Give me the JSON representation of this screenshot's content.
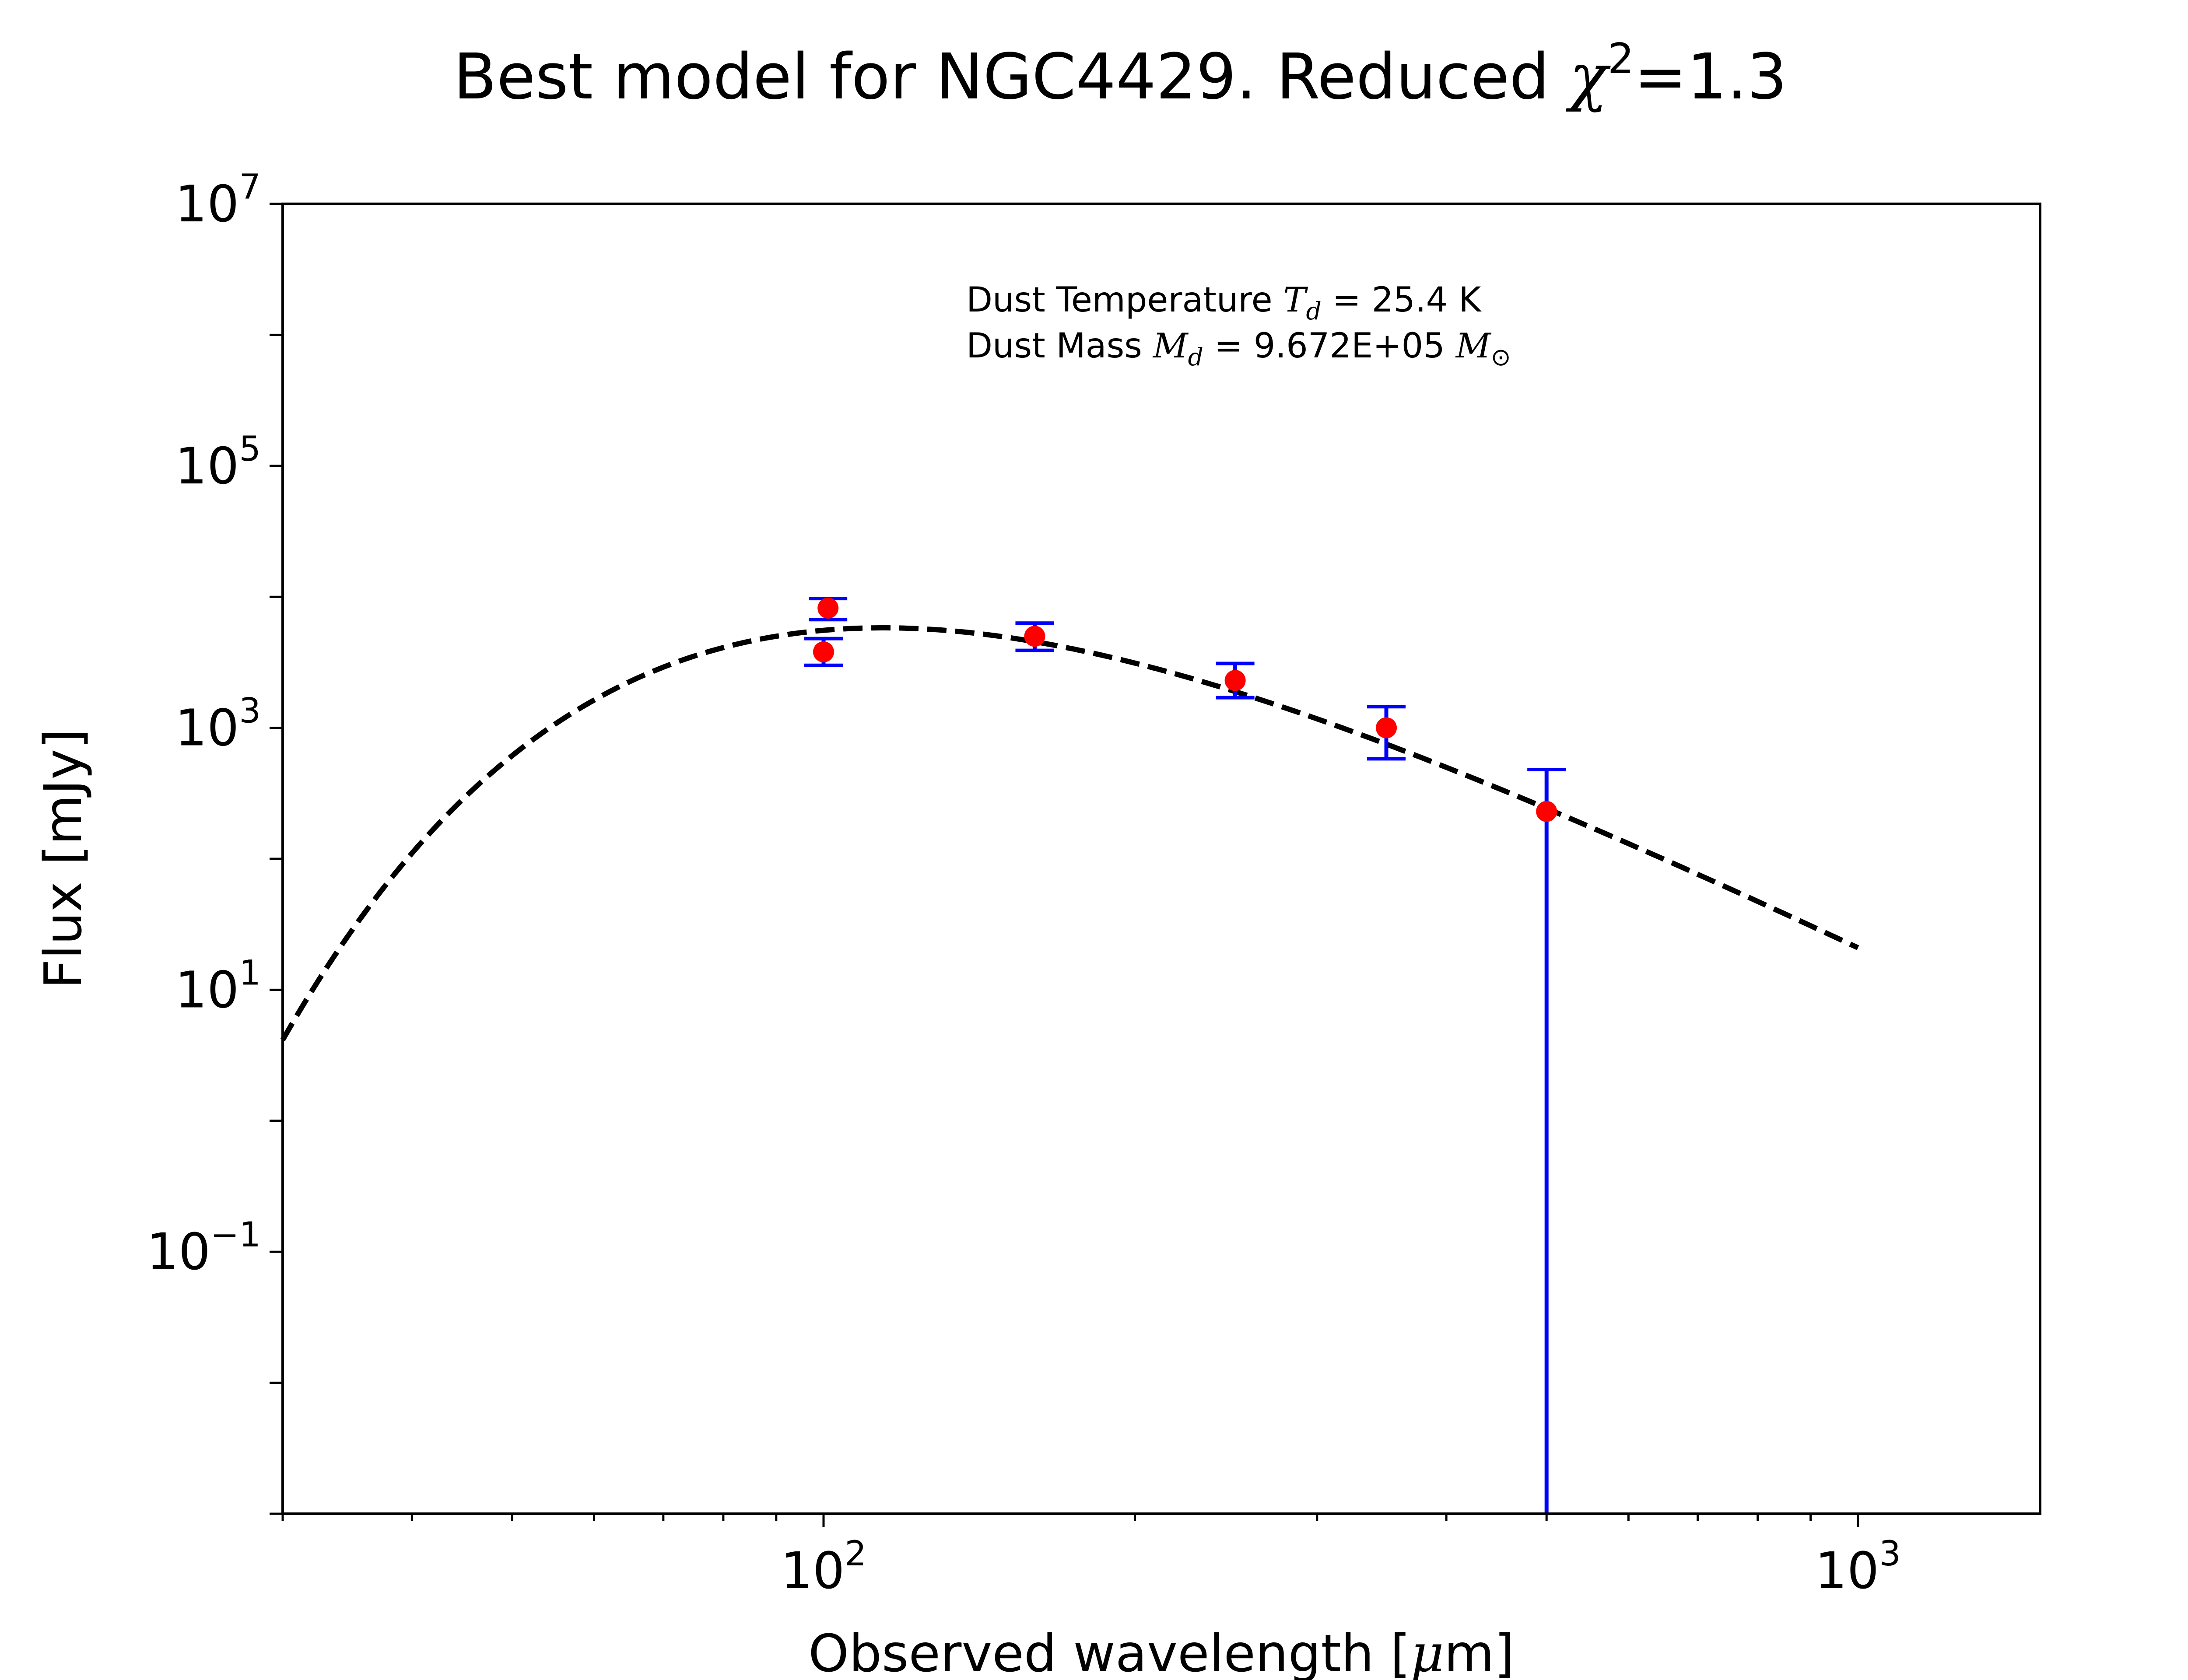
{
  "chart_data": {
    "type": "scatter",
    "title": {
      "prefix": "Best model for NGC4429. Reduced ",
      "chi": "χ",
      "exponent": "2",
      "suffix": "=1.3"
    },
    "xlabel": {
      "prefix": "Observed wavelength [",
      "mu": "μ",
      "suffix": "m]"
    },
    "ylabel": "Flux [mJy]",
    "x_scale": "log",
    "y_scale": "log",
    "xlim": [
      30,
      1500
    ],
    "ylim": [
      0.001,
      10000000
    ],
    "x_ticks": [
      {
        "value": 100,
        "base": "10",
        "exp": "2"
      },
      {
        "value": 1000,
        "base": "10",
        "exp": "3"
      }
    ],
    "y_ticks": [
      {
        "value": 0.1,
        "base": "10",
        "exp": "−1"
      },
      {
        "value": 10,
        "base": "10",
        "exp": "1"
      },
      {
        "value": 1000,
        "base": "10",
        "exp": "3"
      },
      {
        "value": 100000,
        "base": "10",
        "exp": "5"
      },
      {
        "value": 10000000,
        "base": "10",
        "exp": "7"
      }
    ],
    "annotations": [
      {
        "label": "Dust Temperature ",
        "sym": "T",
        "sub": "d",
        "rest": " = 25.4 K"
      },
      {
        "label": "Dust Mass ",
        "sym": "M",
        "sub": "d",
        "rest": " = 9.672E+05 ",
        "sym2": "M",
        "sub2": "⊙"
      }
    ],
    "model": {
      "style": "dashed",
      "color": "#000000",
      "temperature_K": 25.4,
      "x_range": [
        30,
        1000
      ],
      "peak_flux": 5800
    },
    "series": [
      {
        "style": "points",
        "color": "#ff0000",
        "errorbar_color": "#0000ff",
        "points": [
          {
            "x": 100,
            "y": 3800,
            "ylo": 3000,
            "yhi": 4800
          },
          {
            "x": 101,
            "y": 8200,
            "ylo": 6700,
            "yhi": 9700
          },
          {
            "x": 160,
            "y": 5000,
            "ylo": 3900,
            "yhi": 6300
          },
          {
            "x": 250,
            "y": 2300,
            "ylo": 1700,
            "yhi": 3100
          },
          {
            "x": 350,
            "y": 1000,
            "ylo": 580,
            "yhi": 1450
          },
          {
            "x": 500,
            "y": 230,
            "ylo": 0.001,
            "yhi": 480
          }
        ]
      }
    ],
    "grid": false,
    "legend": "none"
  }
}
